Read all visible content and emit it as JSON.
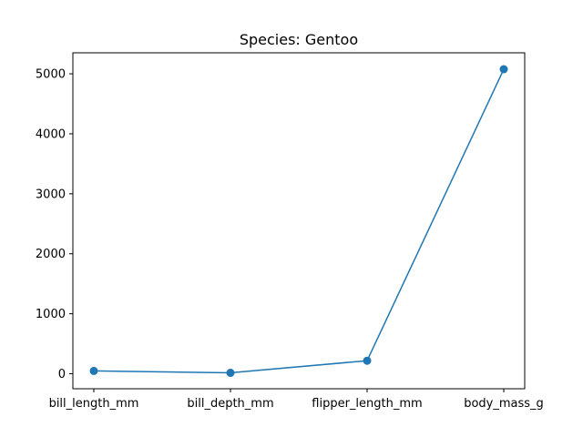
{
  "chart_data": {
    "type": "line",
    "title": "Species: Gentoo",
    "xlabel": "",
    "ylabel": "",
    "categories": [
      "bill_length_mm",
      "bill_depth_mm",
      "flipper_length_mm",
      "body_mass_g"
    ],
    "series": [
      {
        "values": [
          47.5,
          15.0,
          217.2,
          5076.0
        ],
        "color": "#1f77b4"
      }
    ],
    "ylim": [
      -250,
      5350
    ],
    "yticks": [
      0,
      1000,
      2000,
      3000,
      4000,
      5000
    ],
    "grid": false,
    "marker": "circle"
  }
}
